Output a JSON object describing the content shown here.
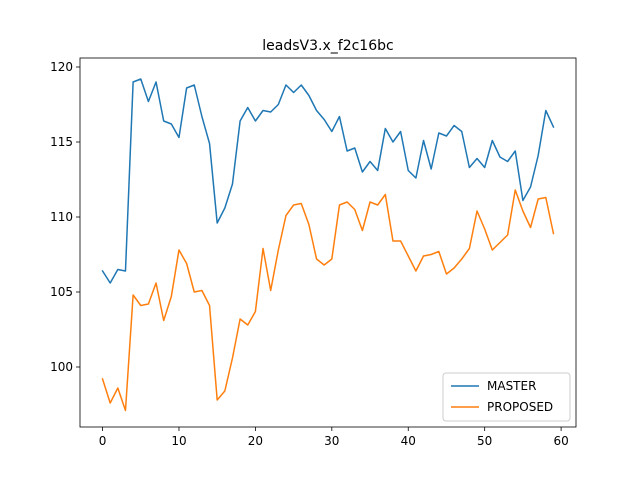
{
  "chart_data": {
    "type": "line",
    "title": "leadsV3.x_f2c16bc",
    "xlabel": "",
    "ylabel": "",
    "xlim": [
      -2.95,
      61.95
    ],
    "ylim": [
      96.0,
      120.6
    ],
    "xticks": [
      0,
      10,
      20,
      30,
      40,
      50,
      60
    ],
    "yticks": [
      100,
      105,
      110,
      115,
      120
    ],
    "grid": false,
    "legend": "lower-right",
    "x": [
      0,
      1,
      2,
      3,
      4,
      5,
      6,
      7,
      8,
      9,
      10,
      11,
      12,
      13,
      14,
      15,
      16,
      17,
      18,
      19,
      20,
      21,
      22,
      23,
      24,
      25,
      26,
      27,
      28,
      29,
      30,
      31,
      32,
      33,
      34,
      35,
      36,
      37,
      38,
      39,
      40,
      41,
      42,
      43,
      44,
      45,
      46,
      47,
      48,
      49,
      50,
      51,
      52,
      53,
      54,
      55,
      56,
      57,
      58,
      59
    ],
    "series": [
      {
        "name": "MASTER",
        "color": "#1f77b4",
        "values": [
          106.4,
          105.6,
          106.5,
          106.4,
          119.0,
          119.2,
          117.7,
          119.0,
          116.4,
          116.2,
          115.3,
          118.6,
          118.8,
          116.7,
          114.9,
          109.6,
          110.6,
          112.2,
          116.4,
          117.3,
          116.4,
          117.1,
          117.0,
          117.5,
          118.8,
          118.3,
          118.8,
          118.1,
          117.1,
          116.5,
          115.7,
          116.7,
          114.4,
          114.6,
          113.0,
          113.7,
          113.1,
          115.9,
          115.0,
          115.7,
          113.1,
          112.6,
          115.1,
          113.2,
          115.6,
          115.4,
          116.1,
          115.7,
          113.3,
          113.9,
          113.3,
          115.1,
          114.0,
          113.7,
          114.4,
          111.1,
          112.0,
          114.1,
          117.1,
          116.0
        ]
      },
      {
        "name": "PROPOSED",
        "color": "#ff7f0e",
        "values": [
          99.2,
          97.6,
          98.6,
          97.1,
          104.8,
          104.1,
          104.2,
          105.6,
          103.1,
          104.7,
          107.8,
          106.9,
          105.0,
          105.1,
          104.1,
          97.8,
          98.4,
          100.6,
          103.2,
          102.8,
          103.7,
          107.9,
          105.1,
          107.8,
          110.1,
          110.8,
          110.9,
          109.5,
          107.2,
          106.8,
          107.2,
          110.8,
          111.0,
          110.5,
          109.1,
          111.0,
          110.8,
          111.5,
          108.4,
          108.4,
          107.4,
          106.4,
          107.4,
          107.5,
          107.7,
          106.2,
          106.6,
          107.2,
          107.9,
          110.4,
          109.2,
          107.8,
          108.3,
          108.8,
          111.8,
          110.4,
          109.3,
          111.2,
          111.3,
          108.9
        ]
      }
    ]
  }
}
